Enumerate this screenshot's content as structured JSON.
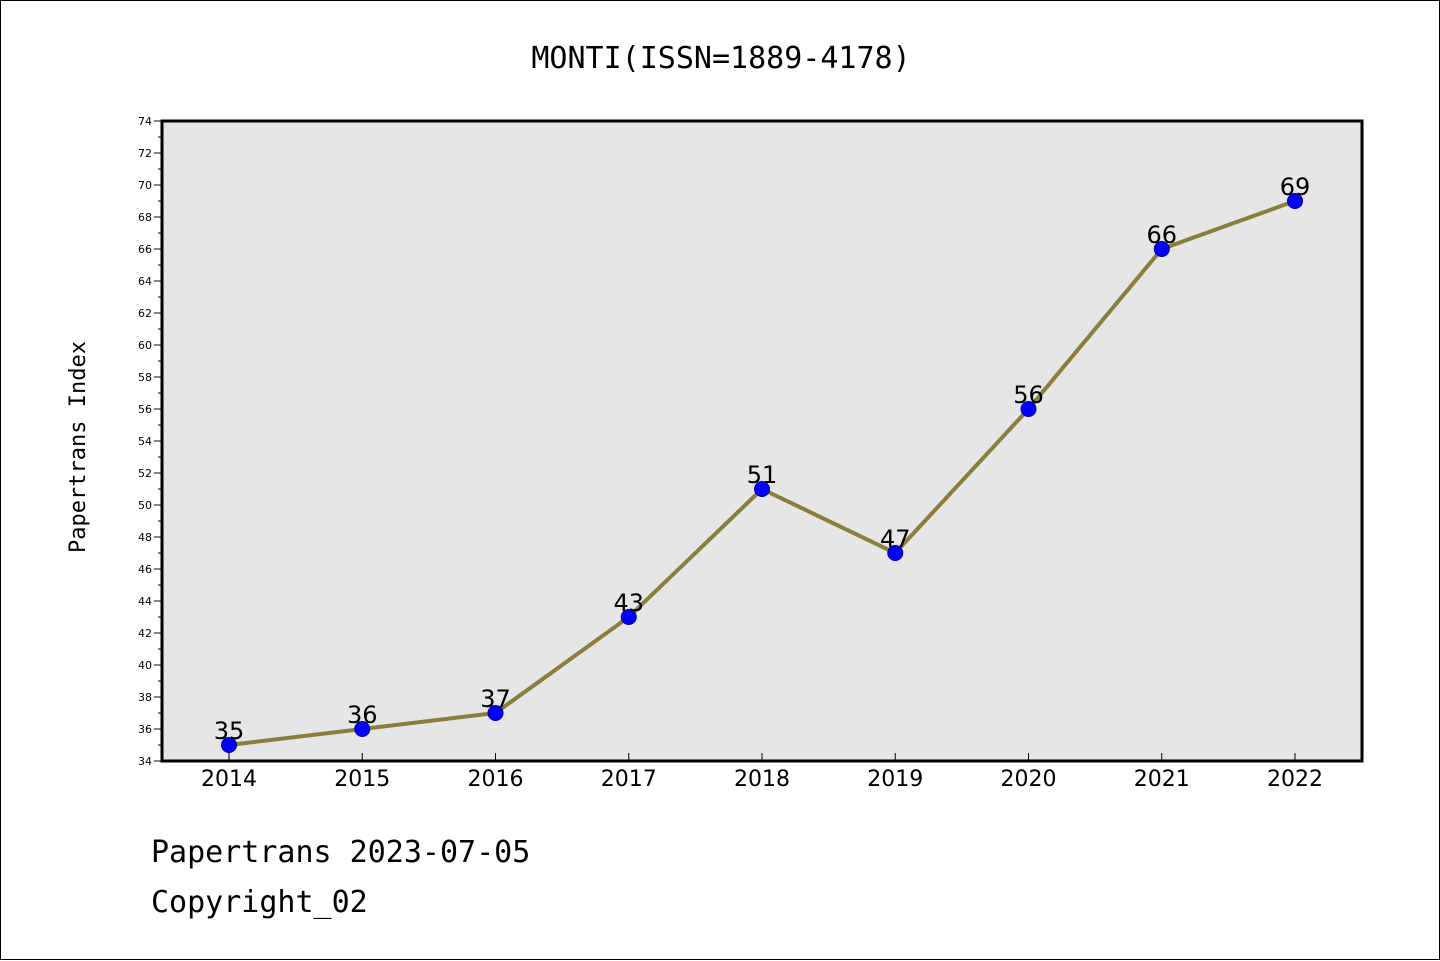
{
  "chart_data": {
    "type": "line",
    "title": "MONTI(ISSN=1889-4178)",
    "xlabel": "",
    "ylabel": "Papertrans Index",
    "categories": [
      "2014",
      "2015",
      "2016",
      "2017",
      "2018",
      "2019",
      "2020",
      "2021",
      "2022"
    ],
    "series": [
      {
        "values": [
          35,
          36,
          37,
          43,
          51,
          47,
          56,
          66,
          69
        ],
        "color": "#8b7d3a"
      }
    ],
    "data_labels": [
      "35",
      "36",
      "37",
      "43",
      "51",
      "47",
      "56",
      "66",
      "69"
    ],
    "ylim": [
      34,
      74
    ],
    "yticks": [
      "34",
      "36",
      "38",
      "40",
      "42",
      "44",
      "46",
      "48",
      "50",
      "52",
      "54",
      "56",
      "58",
      "60",
      "62",
      "64",
      "66",
      "68",
      "70",
      "72",
      "74"
    ],
    "marker_color": "#0000ff",
    "plot_background": "#e6e6e6",
    "grid": false,
    "legend": "none"
  },
  "footer": {
    "line1": "Papertrans 2023-07-05",
    "line2": "Copyright_02"
  }
}
